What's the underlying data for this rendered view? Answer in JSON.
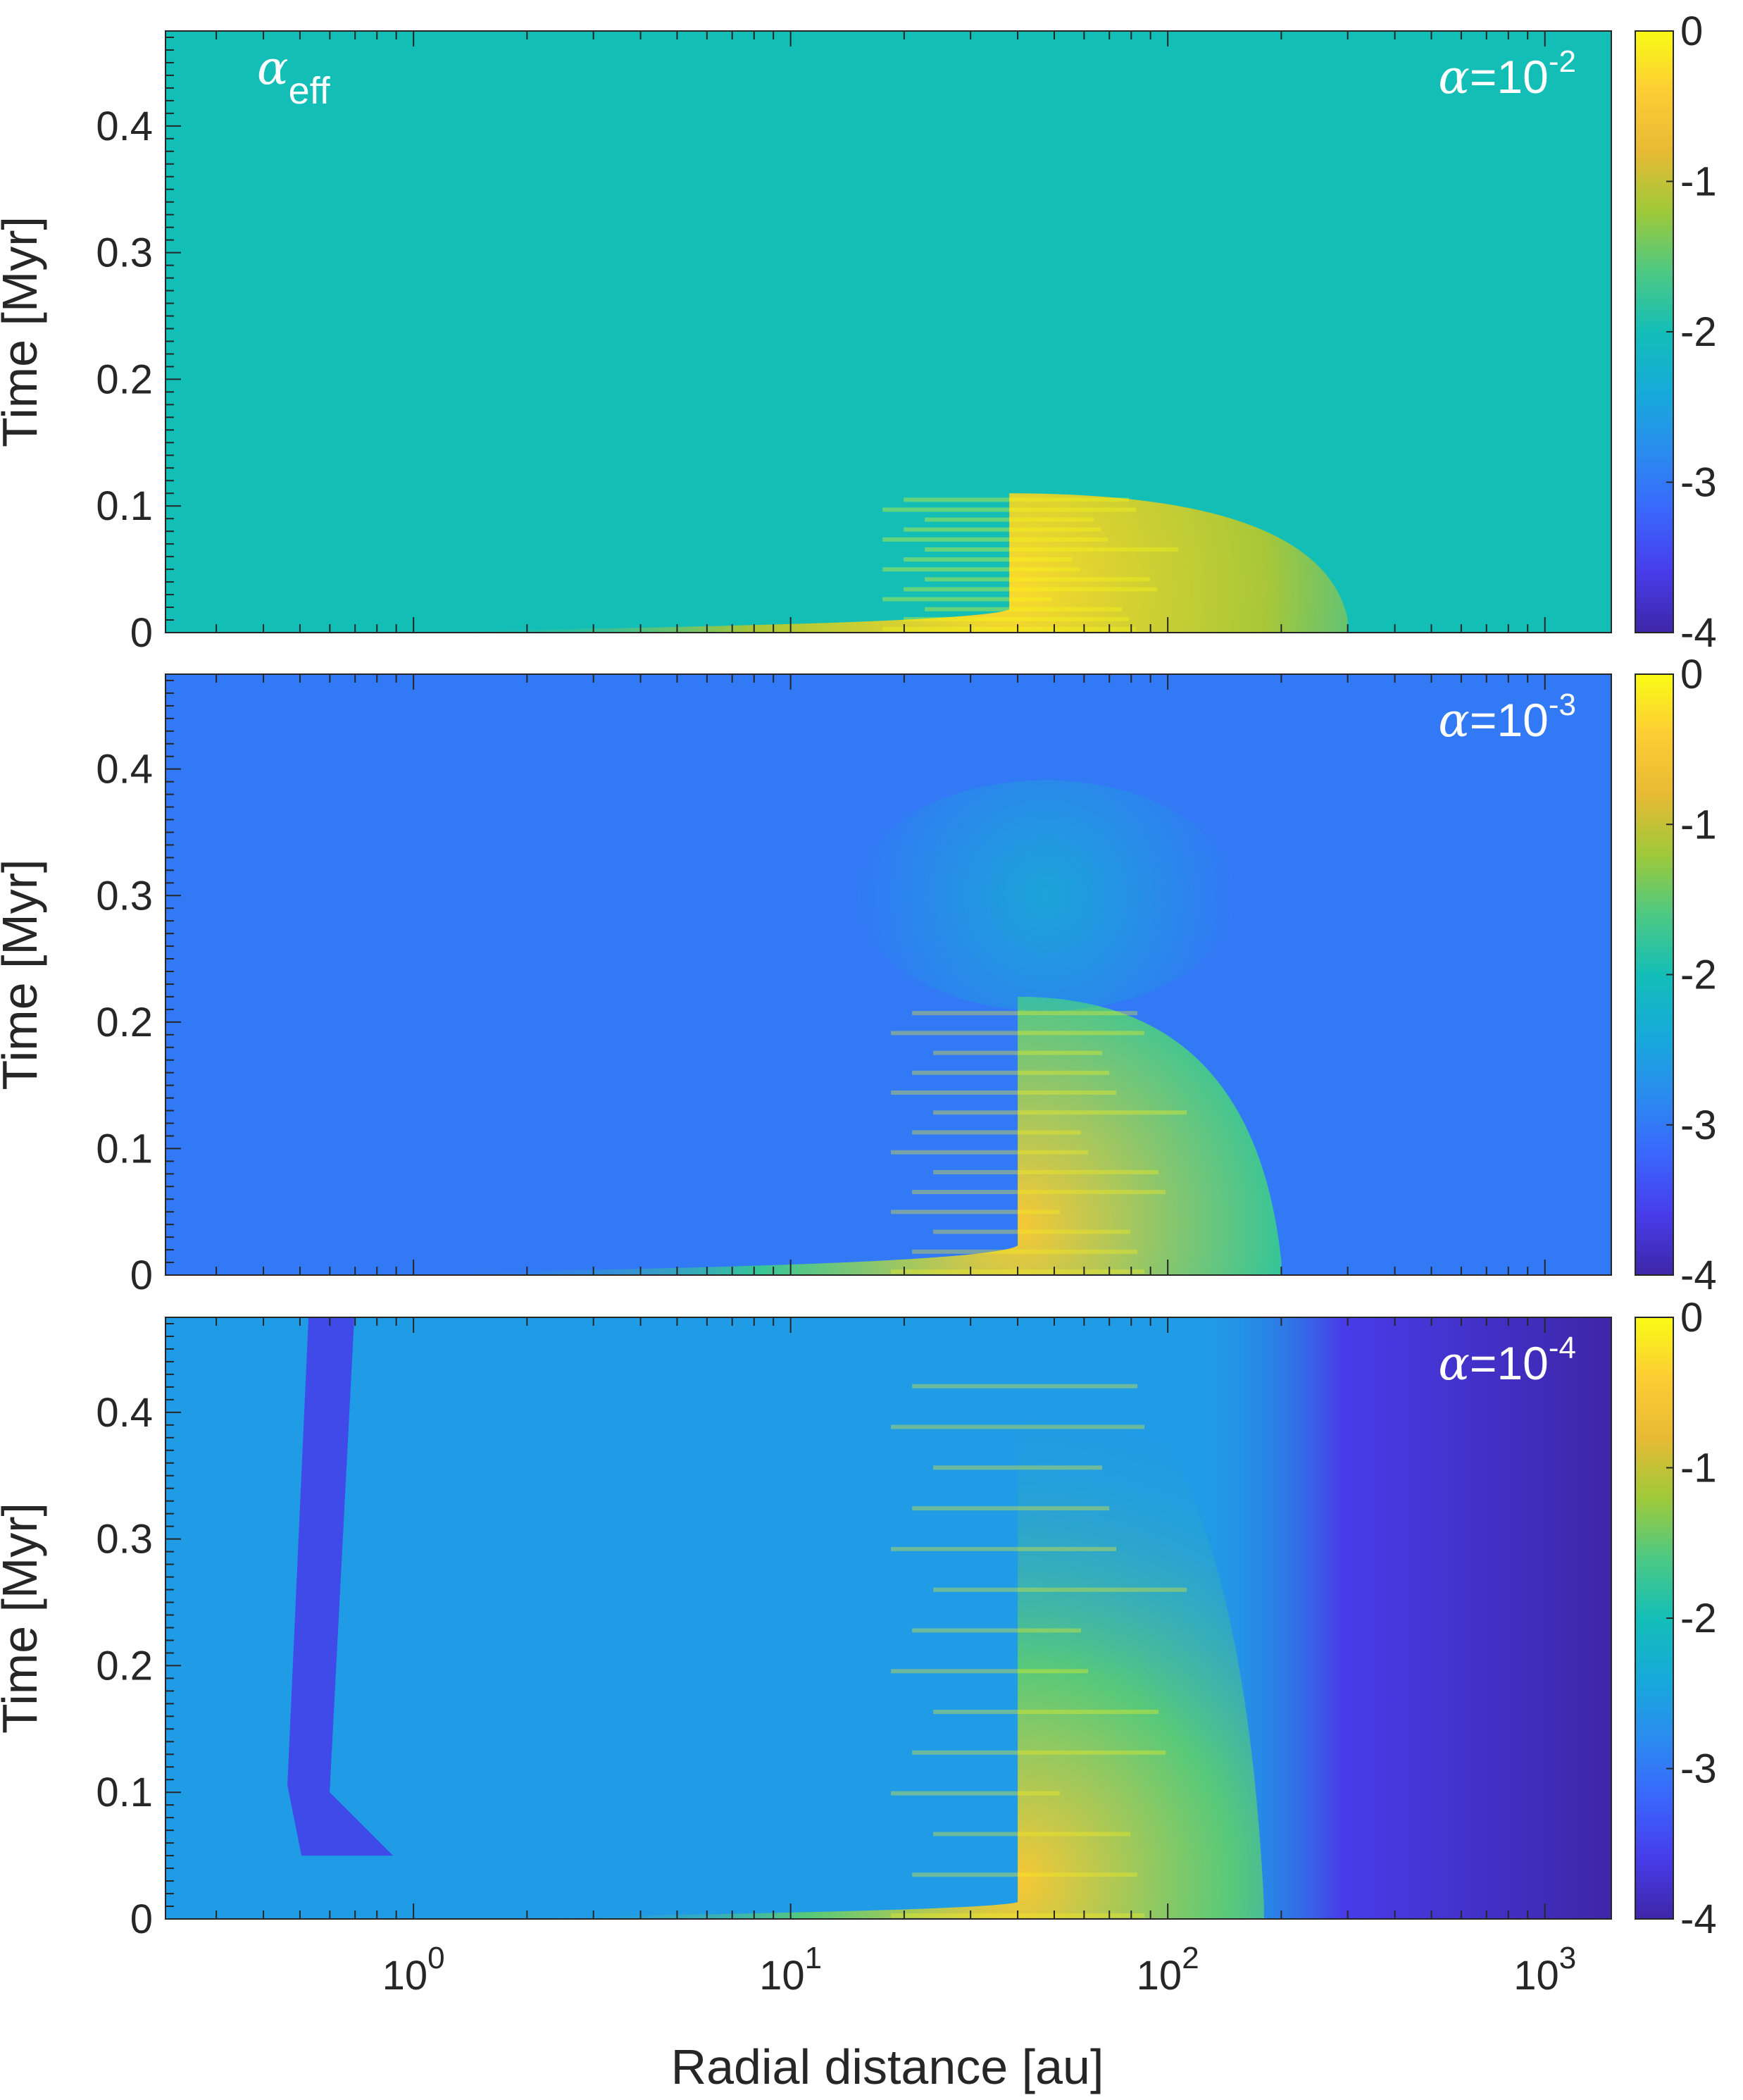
{
  "chart_data": [
    {
      "type": "heatmap",
      "panel_label": "α=10",
      "panel_label_exponent": "-2",
      "quantity_label": "α",
      "quantity_subscript": "eff",
      "xlabel": "",
      "ylabel": "Time [Myr]",
      "x_scale": "log",
      "x_range": [
        0.22,
        1500
      ],
      "x_ticks": [
        {
          "base": "10",
          "exp": "0"
        },
        {
          "base": "10",
          "exp": "1"
        },
        {
          "base": "10",
          "exp": "2"
        },
        {
          "base": "10",
          "exp": "3"
        }
      ],
      "y_range": [
        0,
        0.475
      ],
      "y_ticks": [
        "0",
        "0.1",
        "0.2",
        "0.3",
        "0.4"
      ],
      "colorbar_range": [
        -4,
        0
      ],
      "colorbar_ticks": [
        "0",
        "-1",
        "-2",
        "-3",
        "-4"
      ],
      "colormap": "parula",
      "background_log_alpha": -2,
      "features": [
        {
          "shape": "wedge",
          "x_start": 0.5,
          "x_peak": 38,
          "x_end": 300,
          "t_peak": 0.035,
          "t_top": 0.11,
          "log_alpha_peak": -0.3
        }
      ]
    },
    {
      "type": "heatmap",
      "panel_label": "α=10",
      "panel_label_exponent": "-3",
      "xlabel": "",
      "ylabel": "Time [Myr]",
      "x_scale": "log",
      "x_range": [
        0.22,
        1500
      ],
      "x_ticks": [
        {
          "base": "10",
          "exp": "0"
        },
        {
          "base": "10",
          "exp": "1"
        },
        {
          "base": "10",
          "exp": "2"
        },
        {
          "base": "10",
          "exp": "3"
        }
      ],
      "y_range": [
        0,
        0.475
      ],
      "y_ticks": [
        "0",
        "0.1",
        "0.2",
        "0.3",
        "0.4"
      ],
      "colorbar_range": [
        -4,
        0
      ],
      "colorbar_ticks": [
        "0",
        "-1",
        "-2",
        "-3",
        "-4"
      ],
      "colormap": "parula",
      "background_log_alpha": -3,
      "features": [
        {
          "shape": "wedge",
          "x_start": 0.3,
          "x_peak": 40,
          "x_end": 200,
          "t_peak": 0.04,
          "t_top": 0.22,
          "log_alpha_peak": -0.5
        },
        {
          "shape": "haze",
          "x_start": 15,
          "x_end": 150,
          "t_bottom": 0.22,
          "t_top": 0.38,
          "log_alpha_peak": -2.3
        }
      ]
    },
    {
      "type": "heatmap",
      "panel_label": "α=10",
      "panel_label_exponent": "-4",
      "xlabel": "Radial distance [au]",
      "ylabel": "Time [Myr]",
      "x_scale": "log",
      "x_range": [
        0.22,
        1500
      ],
      "x_ticks": [
        {
          "base": "10",
          "exp": "0"
        },
        {
          "base": "10",
          "exp": "1"
        },
        {
          "base": "10",
          "exp": "2"
        },
        {
          "base": "10",
          "exp": "3"
        }
      ],
      "y_range": [
        0,
        0.475
      ],
      "y_ticks": [
        "0",
        "0.1",
        "0.2",
        "0.3",
        "0.4"
      ],
      "colorbar_range": [
        -4,
        0
      ],
      "colorbar_ticks": [
        "0",
        "-1",
        "-2",
        "-3",
        "-4"
      ],
      "colormap": "parula",
      "background_log_alpha": -2.6,
      "outer_log_alpha": -4,
      "outer_edge_au": 200,
      "features": [
        {
          "shape": "wedge",
          "x_start": 0.9,
          "x_peak": 40,
          "x_end": 180,
          "t_peak": 0.03,
          "t_top": 0.45,
          "log_alpha_peak": -0.5
        },
        {
          "shape": "dark-lane",
          "x_center": 0.55,
          "t_bottom": 0.05,
          "t_top": 0.475,
          "log_alpha_peak": -3.6
        }
      ]
    }
  ]
}
